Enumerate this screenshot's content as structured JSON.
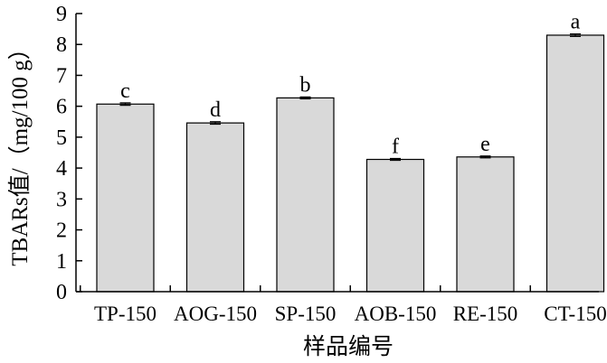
{
  "chart_data": {
    "type": "bar",
    "title": "",
    "xlabel": "样品编号",
    "ylabel": "TBARs值/（mg/100 g）",
    "categories": [
      "TP-150",
      "AOG-150",
      "SP-150",
      "AOB-150",
      "RE-150",
      "CT-150"
    ],
    "values": [
      6.07,
      5.46,
      6.27,
      4.28,
      4.36,
      8.3
    ],
    "errors": [
      0.04,
      0.04,
      0.03,
      0.03,
      0.03,
      0.04
    ],
    "significance": [
      "c",
      "d",
      "b",
      "f",
      "e",
      "a"
    ],
    "ylim": [
      0,
      9
    ],
    "yticks": [
      "0",
      "1",
      "2",
      "3",
      "4",
      "5",
      "6",
      "7",
      "8",
      "9"
    ],
    "grid": false,
    "legend": "none",
    "bar_color": "#d9d9d9",
    "edge_color": "#000000"
  }
}
